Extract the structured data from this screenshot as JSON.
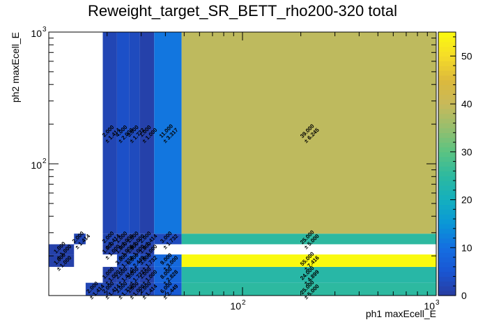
{
  "chart_data": {
    "type": "heatmap",
    "title": "Reweight_target_SR_BETT_rho200-320 total",
    "xlabel": "ph1 maxEcell_E",
    "ylabel": "ph2 maxEcell_E",
    "x_scale": "log",
    "y_scale": "log",
    "xlim": [
      10,
      1000
    ],
    "ylim": [
      10,
      1000
    ],
    "x_ticks": [
      {
        "base": "10",
        "exp": "2",
        "value": 100
      },
      {
        "base": "10",
        "exp": "3",
        "value": 1000
      }
    ],
    "y_ticks": [
      {
        "base": "10",
        "exp": "2",
        "value": 100
      },
      {
        "base": "10",
        "exp": "3",
        "value": 1000
      }
    ],
    "x_edges": [
      10,
      13.5,
      15.5,
      19,
      22.5,
      26,
      29.5,
      35,
      48.5,
      1000
    ],
    "y_edges": [
      10,
      12.5,
      16.5,
      20.5,
      24.5,
      29.5,
      1000
    ],
    "colorbar": {
      "min": 0,
      "max": 55,
      "ticks": [
        0,
        10,
        20,
        30,
        40,
        50
      ]
    },
    "cells": [
      {
        "ix": 2,
        "iy": 0,
        "value": 2.0,
        "error": "1.414"
      },
      {
        "ix": 3,
        "iy": 0,
        "value": 2.0,
        "error": "1.414"
      },
      {
        "ix": 4,
        "iy": 0,
        "value": 3.0,
        "error": "1.732"
      },
      {
        "ix": 5,
        "iy": 0,
        "value": 1.0,
        "error": "1.000"
      },
      {
        "ix": 6,
        "iy": 0,
        "value": 2.0,
        "error": "1.414"
      },
      {
        "ix": 7,
        "iy": 0,
        "value": 6.0,
        "error": "2.449"
      },
      {
        "ix": 8,
        "iy": 0,
        "value": 25.0,
        "error": "5.000"
      },
      {
        "ix": 3,
        "iy": 1,
        "value": 1.0,
        "error": "1.000"
      },
      {
        "ix": 4,
        "iy": 1,
        "value": 2.0,
        "error": "1.414"
      },
      {
        "ix": 5,
        "iy": 1,
        "value": 3.0,
        "error": "1.732"
      },
      {
        "ix": 6,
        "iy": 1,
        "value": 1.0,
        "error": "1.000"
      },
      {
        "ix": 7,
        "iy": 1,
        "value": 8.0,
        "error": "2.828"
      },
      {
        "ix": 8,
        "iy": 1,
        "value": 24.0,
        "error": "4.899"
      },
      {
        "ix": 0,
        "iy": 2,
        "value": 1.0,
        "error": "1.000"
      },
      {
        "ix": 4,
        "iy": 2,
        "value": 3.0,
        "error": "1.732"
      },
      {
        "ix": 5,
        "iy": 2,
        "value": 6.0,
        "error": "2.449"
      },
      {
        "ix": 6,
        "iy": 2,
        "value": 3.0,
        "error": "1.732"
      },
      {
        "ix": 7,
        "iy": 2,
        "value": 9.0,
        "error": "3.000"
      },
      {
        "ix": 8,
        "iy": 2,
        "value": 55.0,
        "error": "7.416"
      },
      {
        "ix": 0,
        "iy": 3,
        "value": 1.0,
        "error": "1.000"
      },
      {
        "ix": 3,
        "iy": 3,
        "value": 1.0,
        "error": "1.000"
      },
      {
        "ix": 4,
        "iy": 3,
        "value": 1.0,
        "error": "1.000"
      },
      {
        "ix": 5,
        "iy": 3,
        "value": 1.0,
        "error": "1.000"
      },
      {
        "ix": 6,
        "iy": 3,
        "value": 1.0,
        "error": "1.000"
      },
      {
        "ix": 1,
        "iy": 4,
        "value": 2.0,
        "error": "1.414"
      },
      {
        "ix": 3,
        "iy": 4,
        "value": 2.0,
        "error": "1.414"
      },
      {
        "ix": 4,
        "iy": 4,
        "value": 1.0,
        "error": "1.000"
      },
      {
        "ix": 5,
        "iy": 4,
        "value": 1.0,
        "error": "1.000"
      },
      {
        "ix": 6,
        "iy": 4,
        "value": 2.0,
        "error": "1.414"
      },
      {
        "ix": 7,
        "iy": 4,
        "value": 3.0,
        "error": "1.732"
      },
      {
        "ix": 8,
        "iy": 4,
        "value": 25.0,
        "error": "5.000"
      },
      {
        "ix": 3,
        "iy": 5,
        "value": 2.0,
        "error": "1.414"
      },
      {
        "ix": 4,
        "iy": 5,
        "value": 4.0,
        "error": "2.000"
      },
      {
        "ix": 5,
        "iy": 5,
        "value": 3.0,
        "error": "1.732"
      },
      {
        "ix": 6,
        "iy": 5,
        "value": 1.0,
        "error": "1.000"
      },
      {
        "ix": 7,
        "iy": 5,
        "value": 11.0,
        "error": "3.317"
      },
      {
        "ix": 8,
        "iy": 5,
        "value": 39.0,
        "error": "6.245"
      }
    ]
  }
}
